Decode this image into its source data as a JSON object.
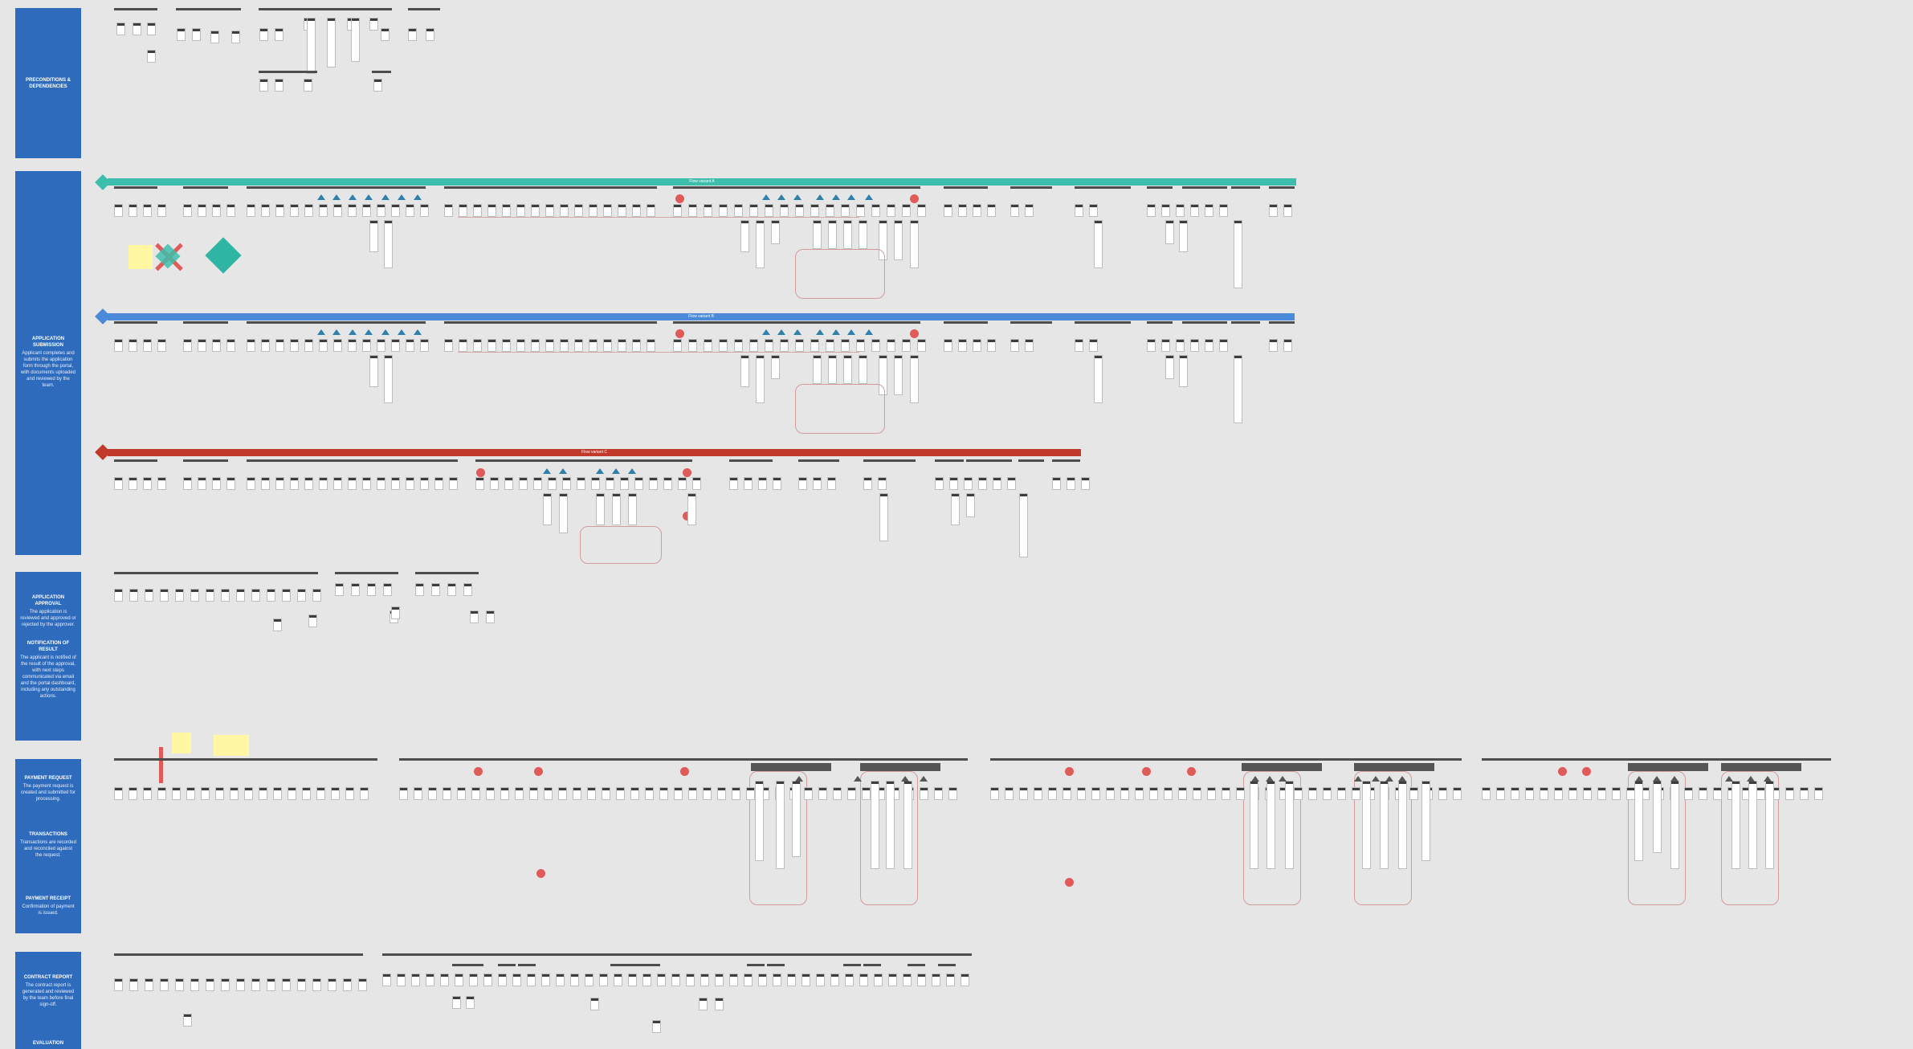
{
  "lanes": [
    {
      "title": "PRECONDITIONS & DEPENDENCIES",
      "body": ""
    },
    {
      "title": "APPLICATION SUBMISSION",
      "body": "Applicant completes and submits the application form through the portal, with documents uploaded and reviewed by the team."
    },
    {
      "title": "APPLICATION APPROVAL",
      "body": "The application is reviewed and approved or rejected by the approver.",
      "title2": "NOTIFICATION OF RESULT",
      "body2": "The applicant is notified of the result of the approval, with next steps communicated via email and the portal dashboard, including any outstanding actions."
    },
    {
      "title": "PAYMENT REQUEST",
      "body": "The payment request is created and submitted for processing.",
      "title2": "TRANSACTIONS",
      "body2": "Transactions are recorded and reconciled against the request.",
      "title3": "PAYMENT RECEIPT",
      "body3": "Confirmation of payment is issued."
    },
    {
      "title": "CONTRACT REPORT",
      "body": "The contract report is generated and reviewed by the team before final sign-off.",
      "title2": "EVALUATION",
      "body2": ""
    }
  ],
  "banners": [
    {
      "label": "Flow variant A",
      "color": "#3dbdab"
    },
    {
      "label": "Flow variant B",
      "color": "#4a8ad8"
    },
    {
      "label": "Flow variant C",
      "color": "#c0392b"
    }
  ],
  "colors": {
    "lane": "#2e6bbd",
    "canvas": "#e6e6e6",
    "alert": "#e05a5a",
    "sticky": "#fff7a1",
    "teal": "#3dbdab"
  }
}
